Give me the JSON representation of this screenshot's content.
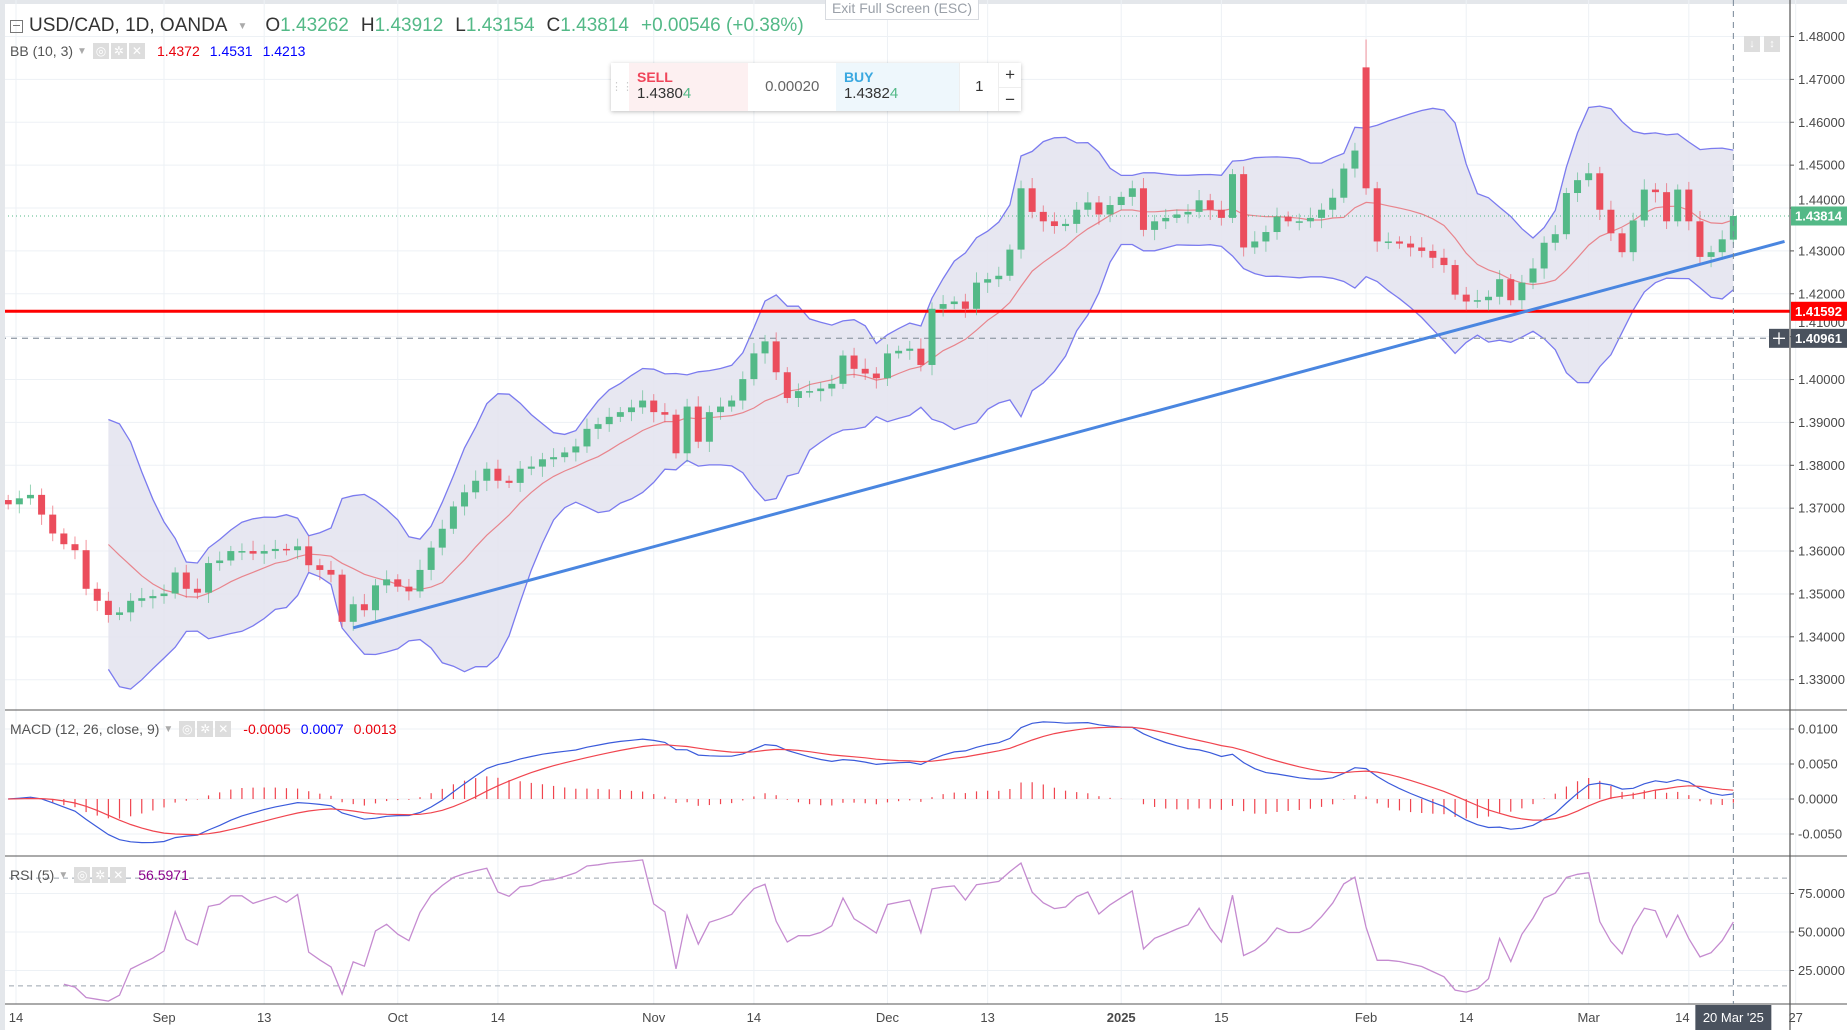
{
  "window": {
    "exit_fullscreen": "Exit Full Screen (ESC)"
  },
  "header": {
    "symbol": "USD/CAD, 1D, OANDA",
    "o_label": "O",
    "o": "1.43262",
    "h_label": "H",
    "h": "1.43912",
    "l_label": "L",
    "l": "1.43154",
    "c_label": "C",
    "c": "1.43814",
    "change": "+0.00546 (+0.38%)"
  },
  "bb_legend": {
    "name": "BB (10, 3)",
    "basis": "1.4372",
    "upper": "1.4531",
    "lower": "1.4213"
  },
  "trade": {
    "sell_label": "SELL",
    "sell_price_main": "1.4380",
    "sell_price_last": "4",
    "spread": "0.00020",
    "buy_label": "BUY",
    "buy_price_main": "1.4382",
    "buy_price_last": "4",
    "quantity": "1",
    "plus": "+",
    "minus": "−"
  },
  "macd_legend": {
    "name": "MACD (12, 26, close, 9)",
    "histogram": "-0.0005",
    "macd": "0.0007",
    "signal": "0.0013"
  },
  "rsi_legend": {
    "name": "RSI (5)",
    "value": "56.5971"
  },
  "colors": {
    "up": "#53b987",
    "down": "#eb4d5c",
    "band": "#7b7bef",
    "band_fill": "#e4e4f0",
    "basis": "#e8858d",
    "trendline": "#4a86e0",
    "level": "#ff0000",
    "macd": "#3b5bdb",
    "signal": "#f0454f",
    "rsi": "#c58bd0"
  },
  "chart_data": {
    "type": "candlestick",
    "title": "USD/CAD, 1D, OANDA",
    "close": [
      1.3709,
      1.3723,
      1.3731,
      1.3685,
      1.3641,
      1.3616,
      1.3602,
      1.3512,
      1.3484,
      1.3451,
      1.3457,
      1.3484,
      1.349,
      1.3495,
      1.3501,
      1.355,
      1.3512,
      1.3503,
      1.3572,
      1.3578,
      1.36,
      1.36,
      1.3594,
      1.36,
      1.3605,
      1.3602,
      1.3611,
      1.3567,
      1.3556,
      1.3545,
      1.3435,
      1.3476,
      1.3462,
      1.352,
      1.3534,
      1.3517,
      1.3506,
      1.3556,
      1.3608,
      1.3652,
      1.3704,
      1.3737,
      1.3764,
      1.3792,
      1.3764,
      1.3759,
      1.3792,
      1.3797,
      1.3814,
      1.3819,
      1.383,
      1.3844,
      1.3885,
      1.3896,
      1.3913,
      1.3924,
      1.3935,
      1.3951,
      1.3924,
      1.3918,
      1.3828,
      1.3937,
      1.3855,
      1.3924,
      1.3937,
      1.3951,
      1.4001,
      1.4061,
      1.4089,
      1.4017,
      1.3957,
      1.3973,
      1.3973,
      1.3979,
      1.399,
      1.4056,
      1.4025,
      1.4014,
      1.4003,
      1.4061,
      1.4067,
      1.4072,
      1.4034,
      1.4165,
      1.4176,
      1.4182,
      1.4165,
      1.4226,
      1.4234,
      1.4242,
      1.4303,
      1.4446,
      1.4391,
      1.4369,
      1.4358,
      1.4363,
      1.4396,
      1.4413,
      1.4385,
      1.4407,
      1.4426,
      1.4446,
      1.4349,
      1.4369,
      1.4377,
      1.4385,
      1.4391,
      1.4418,
      1.4396,
      1.4377,
      1.4479,
      1.4308,
      1.4322,
      1.4344,
      1.438,
      1.4369,
      1.4369,
      1.4377,
      1.4396,
      1.4424,
      1.4492,
      1.4534,
      1.4446,
      1.4322,
      1.4322,
      1.4317,
      1.4308,
      1.43,
      1.4284,
      1.4267,
      1.4198,
      1.4182,
      1.4185,
      1.4193,
      1.4234,
      1.4185,
      1.4226,
      1.4259,
      1.4319,
      1.4339,
      1.4435,
      1.4465,
      1.4481,
      1.4396,
      1.4341,
      1.4297,
      1.4371,
      1.4443,
      1.4437,
      1.4369,
      1.4443,
      1.4369,
      1.4286,
      1.4297,
      1.4327,
      1.43814
    ],
    "open_overrides": {
      "122": 1.4728,
      "155": 1.43262
    },
    "high_overrides": {
      "122": 1.4793,
      "155": 1.43912
    },
    "low_overrides": {
      "155": 1.43154
    },
    "price_axis": {
      "ticks": [
        1.48,
        1.47,
        1.46,
        1.45,
        1.44,
        1.43,
        1.42,
        1.41,
        1.4,
        1.39,
        1.38,
        1.37,
        1.36,
        1.35,
        1.34,
        1.33
      ],
      "range": [
        1.3225,
        1.4885
      ]
    },
    "price_labels": {
      "last": "1.43814",
      "level": "1.41592",
      "crosshair": "1.40961"
    },
    "levels": {
      "last": 1.43814,
      "horizontal": 1.41592,
      "crosshair": 1.40961
    },
    "trendline": {
      "from": [
        31,
        1.3421
      ],
      "to": [
        159.6,
        1.4322
      ]
    },
    "bollinger": {
      "period": 10,
      "mult": 3
    },
    "macd": {
      "fast": 12,
      "slow": 26,
      "signal": 9,
      "ticks": [
        0.01,
        0.005,
        0,
        -0.005
      ],
      "tick_labels": [
        "0.0100",
        "0.0050",
        "0.0000",
        "-0.0050"
      ]
    },
    "rsi": {
      "period": 5,
      "ticks": [
        75,
        50,
        25
      ],
      "tick_labels": [
        "75.0000",
        "50.0000",
        "25.0000"
      ],
      "levels": [
        85,
        15
      ]
    },
    "time_axis": [
      {
        "label": "14",
        "bar": 0.7
      },
      {
        "label": "Sep",
        "bar": 14
      },
      {
        "label": "13",
        "bar": 23
      },
      {
        "label": "Oct",
        "bar": 35
      },
      {
        "label": "14",
        "bar": 44
      },
      {
        "label": "Nov",
        "bar": 58
      },
      {
        "label": "14",
        "bar": 67
      },
      {
        "label": "Dec",
        "bar": 79
      },
      {
        "label": "13",
        "bar": 88
      },
      {
        "label": "2025",
        "bar": 100
      },
      {
        "label": "15",
        "bar": 109
      },
      {
        "label": "Feb",
        "bar": 122
      },
      {
        "label": "14",
        "bar": 131
      },
      {
        "label": "Mar",
        "bar": 142
      },
      {
        "label": "14",
        "bar": 151
      },
      {
        "label": "27",
        "bar": 160.6
      }
    ],
    "crosshair_time": {
      "label": "20 Mar '25",
      "bar": 155
    }
  }
}
